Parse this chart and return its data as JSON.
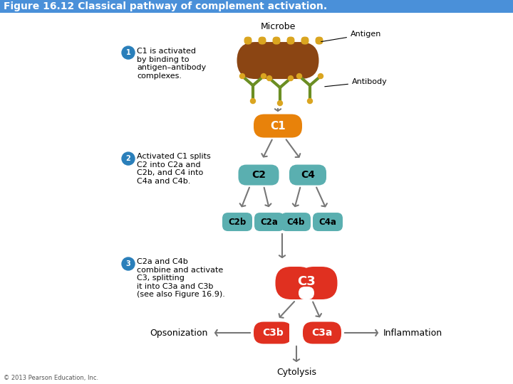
{
  "title": "Figure 16.12 Classical pathway of complement activation.",
  "title_fontsize": 10,
  "bg_color": "#ffffff",
  "header_bar_color": "#4a90d9",
  "microbe_color": "#8B4513",
  "antigen_color": "#DAA520",
  "antibody_color": "#6B8E23",
  "c1_color": "#E8820A",
  "c2_color": "#5AAFB0",
  "c4_color": "#5AAFB0",
  "c2b_color": "#5AAFB0",
  "c2a_color": "#5AAFB0",
  "c4b_color": "#5AAFB0",
  "c4a_color": "#5AAFB0",
  "c3_color": "#E03020",
  "c3b_color": "#E03020",
  "c3a_color": "#E03020",
  "step_circle_color": "#2a7fba",
  "arrow_color": "#777777",
  "text_color": "#000000",
  "footer_text": "© 2013 Pearson Education, Inc.",
  "step1_text": "C1 is activated\nby binding to\nantigen–antibody\ncomplexes.",
  "step2_text": "Activated C1 splits\nC2 into C2a and\nC2b, and C4 into\nC4a and C4b.",
  "step3_text": "C2a and C4b\ncombine and activate\nC3, splitting\nit into C3a and C3b\n(see also Figure 16.9)."
}
